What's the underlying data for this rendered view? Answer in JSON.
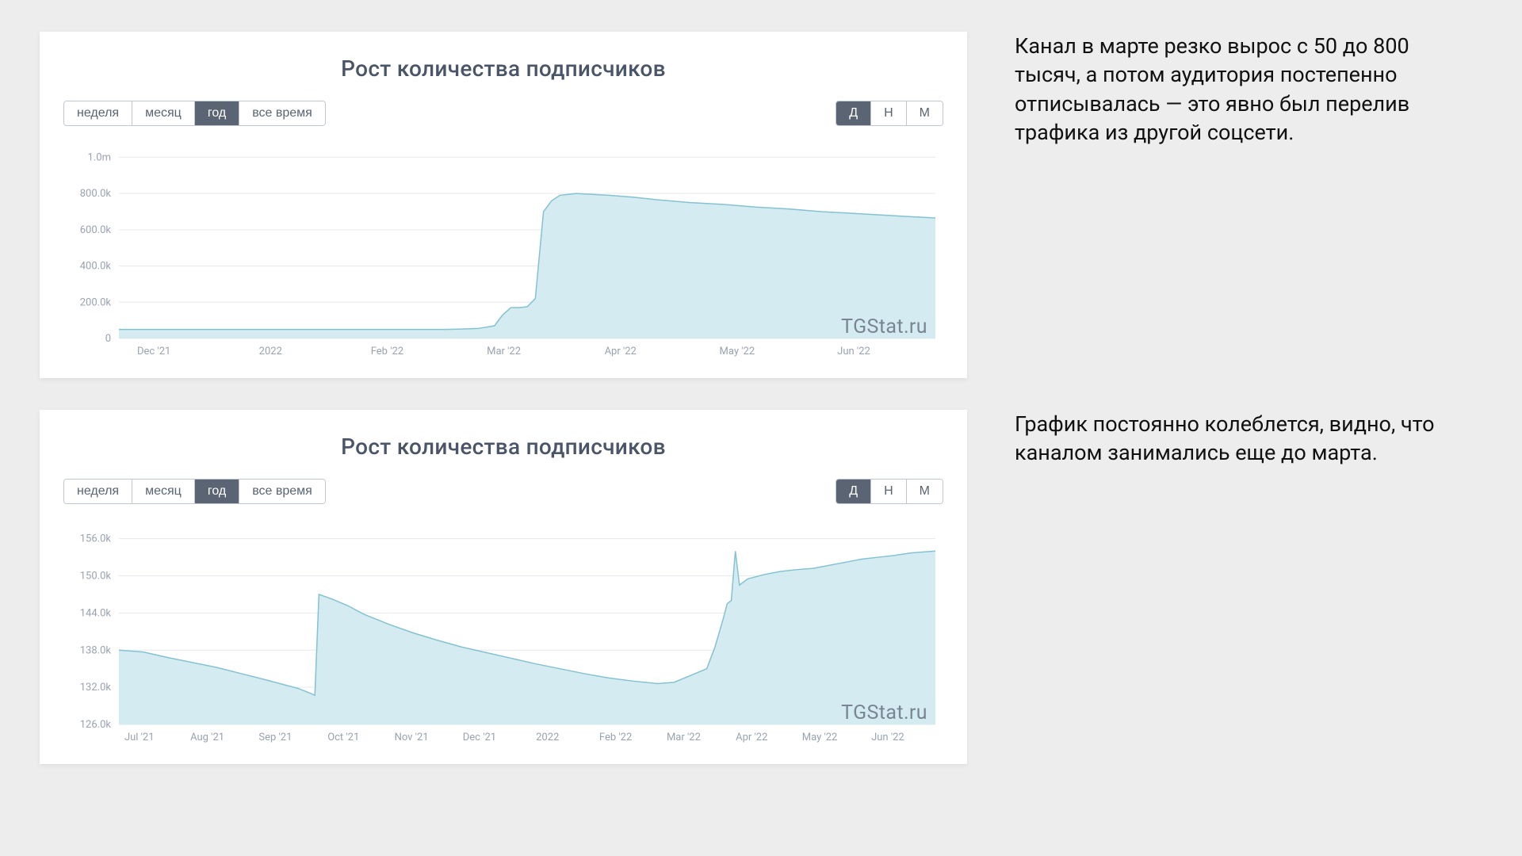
{
  "background_color": "#ededed",
  "card_bg": "#ffffff",
  "chart1": {
    "type": "area",
    "title": "Рост количества подписчиков",
    "title_fontsize": 28,
    "title_color": "#4a5568",
    "range_buttons": [
      "неделя",
      "месяц",
      "год",
      "все время"
    ],
    "range_active_index": 2,
    "agg_buttons": [
      "Д",
      "Н",
      "М"
    ],
    "agg_active_index": 0,
    "button_text_color": "#5a6472",
    "button_active_bg": "#5a6472",
    "button_active_text": "#ffffff",
    "button_border": "#c1c7d0",
    "y_ticks": [
      0,
      200000,
      400000,
      600000,
      800000,
      1000000
    ],
    "y_tick_labels": [
      "0",
      "200.0k",
      "400.0k",
      "600.0k",
      "800.0k",
      "1.0m"
    ],
    "y_tick_color": "#9aa2af",
    "y_tick_fontsize": 13,
    "ylim": [
      0,
      1050000
    ],
    "x_categories": [
      "Dec '21",
      "2022",
      "Feb '22",
      "Mar '22",
      "Apr '22",
      "May '22",
      "Jun '22"
    ],
    "x_tick_color": "#9aa2af",
    "x_tick_fontsize": 13,
    "grid_color": "#e6e9ed",
    "line_color": "#85c2d1",
    "fill_color": "#cfe9ef",
    "fill_opacity": 0.9,
    "line_width": 1.5,
    "chart_bg": "#ffffff",
    "watermark": "TGStat.ru",
    "watermark_color": "#7a8594",
    "watermark_fontsize": 25,
    "data": [
      {
        "x": 0.0,
        "y": 50000
      },
      {
        "x": 0.05,
        "y": 50000
      },
      {
        "x": 0.1,
        "y": 50000
      },
      {
        "x": 0.15,
        "y": 50000
      },
      {
        "x": 0.2,
        "y": 50000
      },
      {
        "x": 0.25,
        "y": 50000
      },
      {
        "x": 0.3,
        "y": 50000
      },
      {
        "x": 0.35,
        "y": 50000
      },
      {
        "x": 0.4,
        "y": 50000
      },
      {
        "x": 0.42,
        "y": 52000
      },
      {
        "x": 0.44,
        "y": 55000
      },
      {
        "x": 0.46,
        "y": 70000
      },
      {
        "x": 0.47,
        "y": 130000
      },
      {
        "x": 0.48,
        "y": 170000
      },
      {
        "x": 0.49,
        "y": 170000
      },
      {
        "x": 0.5,
        "y": 175000
      },
      {
        "x": 0.51,
        "y": 220000
      },
      {
        "x": 0.52,
        "y": 700000
      },
      {
        "x": 0.53,
        "y": 760000
      },
      {
        "x": 0.54,
        "y": 790000
      },
      {
        "x": 0.56,
        "y": 800000
      },
      {
        "x": 0.58,
        "y": 795000
      },
      {
        "x": 0.6,
        "y": 790000
      },
      {
        "x": 0.63,
        "y": 780000
      },
      {
        "x": 0.66,
        "y": 765000
      },
      {
        "x": 0.7,
        "y": 750000
      },
      {
        "x": 0.74,
        "y": 740000
      },
      {
        "x": 0.78,
        "y": 725000
      },
      {
        "x": 0.82,
        "y": 715000
      },
      {
        "x": 0.86,
        "y": 700000
      },
      {
        "x": 0.9,
        "y": 690000
      },
      {
        "x": 0.94,
        "y": 680000
      },
      {
        "x": 0.97,
        "y": 672000
      },
      {
        "x": 1.0,
        "y": 665000
      }
    ]
  },
  "comment1": "Канал в марте резко вырос с 50 до 800 тысяч, а потом аудитория постепенно отписывалась — это явно был перелив трафика из другой соцсети.",
  "chart2": {
    "type": "area",
    "title": "Рост количества подписчиков",
    "title_fontsize": 28,
    "title_color": "#4a5568",
    "range_buttons": [
      "неделя",
      "месяц",
      "год",
      "все время"
    ],
    "range_active_index": 2,
    "agg_buttons": [
      "Д",
      "Н",
      "М"
    ],
    "agg_active_index": 0,
    "button_text_color": "#5a6472",
    "button_active_bg": "#5a6472",
    "button_active_text": "#ffffff",
    "button_border": "#c1c7d0",
    "y_ticks": [
      126000,
      132000,
      138000,
      144000,
      150000,
      156000
    ],
    "y_tick_labels": [
      "126.0k",
      "132.0k",
      "138.0k",
      "144.0k",
      "150.0k",
      "156.0k"
    ],
    "y_tick_color": "#9aa2af",
    "y_tick_fontsize": 13,
    "ylim": [
      126000,
      158000
    ],
    "x_categories": [
      "Jul '21",
      "Aug '21",
      "Sep '21",
      "Oct '21",
      "Nov '21",
      "Dec '21",
      "2022",
      "Feb '22",
      "Mar '22",
      "Apr '22",
      "May '22",
      "Jun '22"
    ],
    "x_tick_color": "#9aa2af",
    "x_tick_fontsize": 13,
    "grid_color": "#e6e9ed",
    "line_color": "#85c2d1",
    "fill_color": "#cfe9ef",
    "fill_opacity": 0.9,
    "line_width": 1.5,
    "chart_bg": "#ffffff",
    "watermark": "TGStat.ru",
    "watermark_color": "#7a8594",
    "watermark_fontsize": 25,
    "data": [
      {
        "x": 0.0,
        "y": 138000
      },
      {
        "x": 0.03,
        "y": 137700
      },
      {
        "x": 0.06,
        "y": 136800
      },
      {
        "x": 0.09,
        "y": 136000
      },
      {
        "x": 0.12,
        "y": 135200
      },
      {
        "x": 0.15,
        "y": 134200
      },
      {
        "x": 0.18,
        "y": 133200
      },
      {
        "x": 0.2,
        "y": 132500
      },
      {
        "x": 0.22,
        "y": 131800
      },
      {
        "x": 0.235,
        "y": 131000
      },
      {
        "x": 0.24,
        "y": 130700
      },
      {
        "x": 0.245,
        "y": 147000
      },
      {
        "x": 0.26,
        "y": 146300
      },
      {
        "x": 0.28,
        "y": 145200
      },
      {
        "x": 0.3,
        "y": 143800
      },
      {
        "x": 0.33,
        "y": 142200
      },
      {
        "x": 0.36,
        "y": 140800
      },
      {
        "x": 0.39,
        "y": 139600
      },
      {
        "x": 0.42,
        "y": 138500
      },
      {
        "x": 0.45,
        "y": 137600
      },
      {
        "x": 0.48,
        "y": 136700
      },
      {
        "x": 0.51,
        "y": 135800
      },
      {
        "x": 0.54,
        "y": 135000
      },
      {
        "x": 0.57,
        "y": 134200
      },
      {
        "x": 0.6,
        "y": 133500
      },
      {
        "x": 0.63,
        "y": 133000
      },
      {
        "x": 0.66,
        "y": 132600
      },
      {
        "x": 0.68,
        "y": 132800
      },
      {
        "x": 0.7,
        "y": 133900
      },
      {
        "x": 0.72,
        "y": 135000
      },
      {
        "x": 0.73,
        "y": 138500
      },
      {
        "x": 0.74,
        "y": 143000
      },
      {
        "x": 0.745,
        "y": 145500
      },
      {
        "x": 0.75,
        "y": 146000
      },
      {
        "x": 0.755,
        "y": 154000
      },
      {
        "x": 0.76,
        "y": 148500
      },
      {
        "x": 0.77,
        "y": 149500
      },
      {
        "x": 0.79,
        "y": 150200
      },
      {
        "x": 0.81,
        "y": 150700
      },
      {
        "x": 0.83,
        "y": 151000
      },
      {
        "x": 0.85,
        "y": 151200
      },
      {
        "x": 0.87,
        "y": 151700
      },
      {
        "x": 0.89,
        "y": 152200
      },
      {
        "x": 0.91,
        "y": 152700
      },
      {
        "x": 0.93,
        "y": 153000
      },
      {
        "x": 0.95,
        "y": 153300
      },
      {
        "x": 0.97,
        "y": 153700
      },
      {
        "x": 1.0,
        "y": 154000
      }
    ]
  },
  "comment2": "График постоянно колеблется, видно, что каналом занимались еще до марта."
}
